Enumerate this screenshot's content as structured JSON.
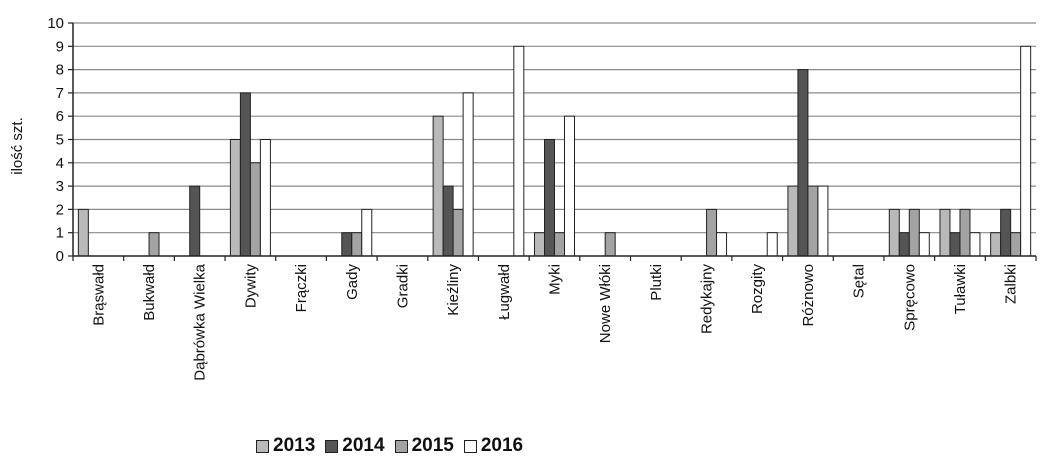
{
  "chart_data": {
    "type": "bar",
    "ylabel": "ilość szt.",
    "ylim": [
      0,
      10
    ],
    "yticks": [
      "0",
      "1",
      "2",
      "3",
      "4",
      "5",
      "6",
      "7",
      "8",
      "9",
      "10"
    ],
    "grid": true,
    "legend_position": "bottom",
    "categories": [
      "Brąswałd",
      "Bukwałd",
      "Dąbrówka Wielka",
      "Dywity",
      "Frączki",
      "Gady",
      "Gradki",
      "Kieźliny",
      "Ługwałd",
      "Myki",
      "Nowe Włóki",
      "Plutki",
      "Redykajny",
      "Rozgity",
      "Różnowo",
      "Sętal",
      "Spręcowo",
      "Tuławki",
      "Zalbki"
    ],
    "series": [
      {
        "name": "2013",
        "color": "#b9b9b9",
        "values": [
          2,
          0,
          0,
          5,
          0,
          0,
          0,
          6,
          0,
          1,
          0,
          0,
          0,
          0,
          3,
          0,
          2,
          2,
          1
        ]
      },
      {
        "name": "2014",
        "color": "#555555",
        "values": [
          0,
          0,
          3,
          7,
          0,
          1,
          0,
          3,
          0,
          5,
          0,
          0,
          0,
          0,
          8,
          0,
          1,
          1,
          2
        ]
      },
      {
        "name": "2015",
        "color": "#a3a3a3",
        "values": [
          0,
          1,
          0,
          4,
          0,
          1,
          0,
          2,
          0,
          1,
          1,
          0,
          2,
          0,
          3,
          0,
          2,
          2,
          1
        ]
      },
      {
        "name": "2016",
        "color": "#ffffff",
        "values": [
          0,
          0,
          0,
          5,
          0,
          2,
          0,
          7,
          9,
          6,
          0,
          0,
          1,
          1,
          3,
          0,
          1,
          1,
          9
        ]
      }
    ]
  }
}
